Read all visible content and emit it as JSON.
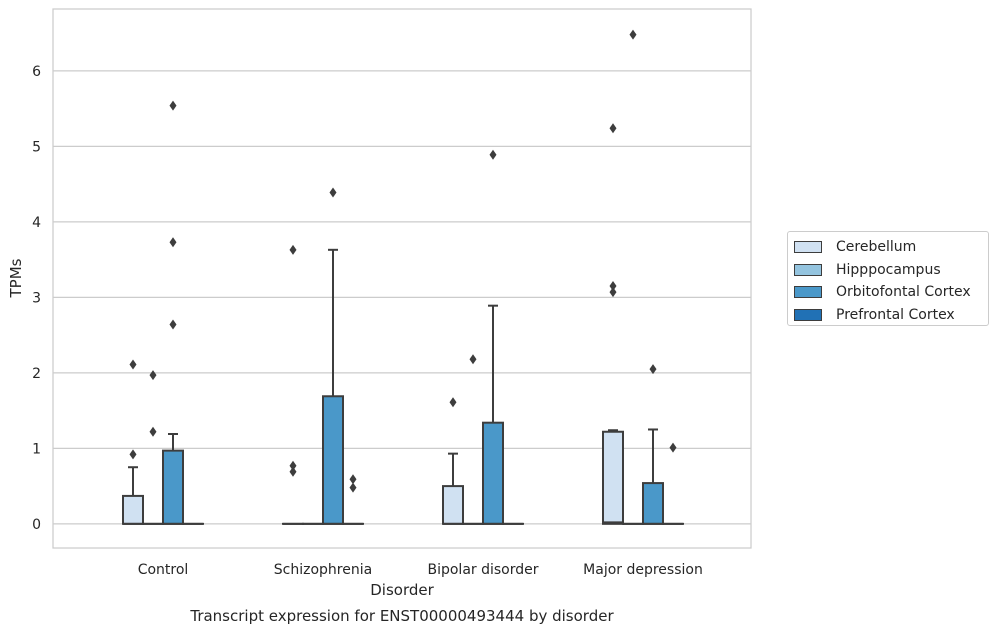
{
  "chart_data": {
    "type": "box",
    "title": "Transcript expression for ENST00000493444 by disorder",
    "xlabel": "Disorder",
    "ylabel": "TPMs",
    "ylim": [
      -0.32,
      6.82
    ],
    "yticks": [
      "0",
      "1",
      "2",
      "3",
      "4",
      "5",
      "6"
    ],
    "categories": [
      "Control",
      "Schizophrenia",
      "Bipolar disorder",
      "Major depression"
    ],
    "legend_position": "right",
    "grid": "horizontal",
    "series": [
      {
        "name": "Cerebellum",
        "color": "#d0e1f2",
        "boxes": [
          {
            "q1": 0,
            "median": 0,
            "q3": 0.37,
            "whisker_low": 0,
            "whisker_high": 0.75,
            "outliers": [
              0.92,
              2.11
            ]
          },
          {
            "q1": 0,
            "median": 0,
            "q3": 0,
            "whisker_low": 0,
            "whisker_high": 0,
            "outliers": [
              0.69,
              0.77,
              3.63
            ]
          },
          {
            "q1": 0,
            "median": 0,
            "q3": 0.5,
            "whisker_low": 0,
            "whisker_high": 0.93,
            "outliers": [
              1.61
            ]
          },
          {
            "q1": 0,
            "median": 0.02,
            "q3": 1.22,
            "whisker_low": 0,
            "whisker_high": 1.24,
            "outliers": [
              3.07,
              3.15,
              5.24
            ]
          }
        ]
      },
      {
        "name": "Hipppocampus",
        "color": "#94c4df",
        "boxes": [
          {
            "q1": 0,
            "median": 0,
            "q3": 0,
            "whisker_low": 0,
            "whisker_high": 0,
            "outliers": [
              1.22,
              1.97
            ]
          },
          {
            "q1": 0,
            "median": 0,
            "q3": 0,
            "whisker_low": 0,
            "whisker_high": 0,
            "outliers": []
          },
          {
            "q1": 0,
            "median": 0,
            "q3": 0,
            "whisker_low": 0,
            "whisker_high": 0,
            "outliers": [
              2.18
            ]
          },
          {
            "q1": 0,
            "median": 0,
            "q3": 0,
            "whisker_low": 0,
            "whisker_high": 0,
            "outliers": [
              6.48
            ]
          }
        ]
      },
      {
        "name": "Orbitofontal Cortex",
        "color": "#4a98c9",
        "boxes": [
          {
            "q1": 0,
            "median": 0,
            "q3": 0.97,
            "whisker_low": 0,
            "whisker_high": 1.19,
            "outliers": [
              2.64,
              3.73,
              5.54
            ]
          },
          {
            "q1": 0,
            "median": 0,
            "q3": 1.69,
            "whisker_low": 0,
            "whisker_high": 3.63,
            "outliers": [
              4.39
            ]
          },
          {
            "q1": 0,
            "median": 0,
            "q3": 1.34,
            "whisker_low": 0,
            "whisker_high": 2.89,
            "outliers": [
              4.89
            ]
          },
          {
            "q1": 0,
            "median": 0,
            "q3": 0.54,
            "whisker_low": 0,
            "whisker_high": 1.25,
            "outliers": [
              2.05
            ]
          }
        ]
      },
      {
        "name": "Prefrontal Cortex",
        "color": "#2171b5",
        "boxes": [
          {
            "q1": 0,
            "median": 0,
            "q3": 0,
            "whisker_low": 0,
            "whisker_high": 0,
            "outliers": []
          },
          {
            "q1": 0,
            "median": 0,
            "q3": 0,
            "whisker_low": 0,
            "whisker_high": 0,
            "outliers": [
              0.48,
              0.59
            ]
          },
          {
            "q1": 0,
            "median": 0,
            "q3": 0,
            "whisker_low": 0,
            "whisker_high": 0,
            "outliers": []
          },
          {
            "q1": 0,
            "median": 0,
            "q3": 0,
            "whisker_low": 0,
            "whisker_high": 0,
            "outliers": [
              1.01
            ]
          }
        ]
      }
    ]
  }
}
